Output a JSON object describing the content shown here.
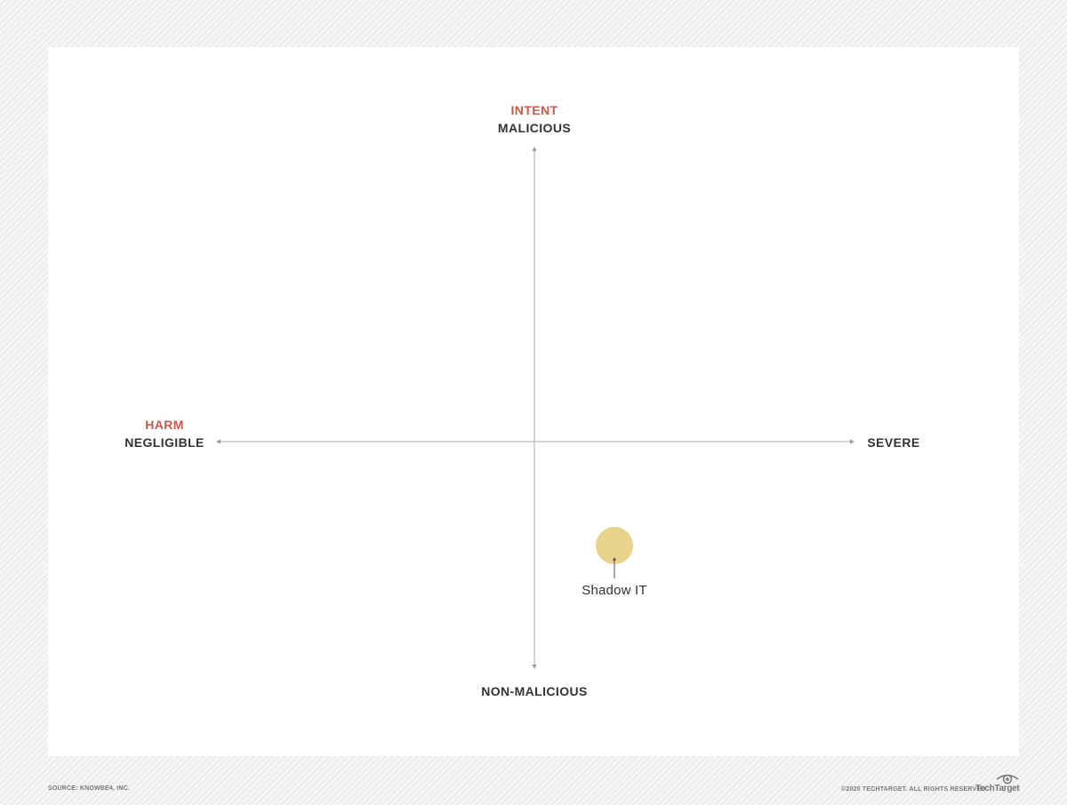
{
  "intent": {
    "title": "INTENT",
    "top": "MALICIOUS",
    "bottom": "NON-MALICIOUS"
  },
  "harm": {
    "title": "HARM",
    "left": "NEGLIGIBLE",
    "right": "SEVERE"
  },
  "points": [
    {
      "label": "Shadow IT",
      "color": "#e8d38c"
    }
  ],
  "colors": {
    "accent": "#c8594a",
    "text": "#333333",
    "axis": "#aaaaaa",
    "point": "#e8d38c"
  },
  "footer": {
    "source": "SOURCE: KNOWBE4, INC.",
    "copyright": "©2020 TECHTARGET. ALL RIGHTS RESERVED",
    "brand": "TechTarget"
  }
}
